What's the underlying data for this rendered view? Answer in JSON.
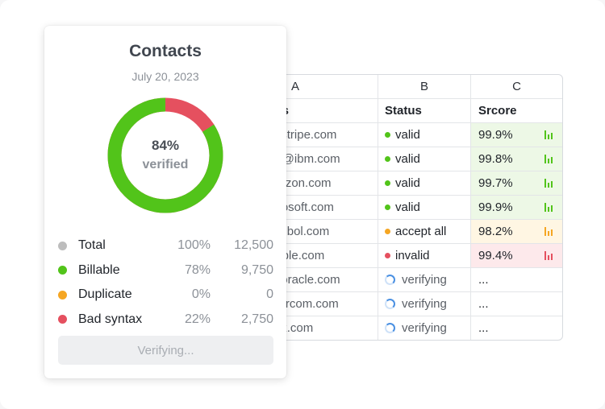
{
  "card": {
    "title": "Contacts",
    "date": "July 20, 2023",
    "donut": {
      "percent_label": "84%",
      "sub_label": "verified",
      "verified_fraction": 0.84
    },
    "legend": [
      {
        "name": "Total",
        "percent": "100%",
        "count": "12,500",
        "color": "#bdbdbd"
      },
      {
        "name": "Billable",
        "percent": "78%",
        "count": "9,750",
        "color": "#52c41a"
      },
      {
        "name": "Duplicate",
        "percent": "0%",
        "count": "0",
        "color": "#f5a623"
      },
      {
        "name": "Bad syntax",
        "percent": "22%",
        "count": "2,750",
        "color": "#e5505f"
      }
    ],
    "button_label": "Verifying..."
  },
  "sheet": {
    "columns": [
      "A",
      "B",
      "C"
    ],
    "headers": [
      "ess",
      "Status",
      "Srcore"
    ],
    "rows": [
      {
        "email": "@stripe.com",
        "status": "valid",
        "kind": "valid",
        "score": "99.9%"
      },
      {
        "email": "be@ibm.com",
        "status": "valid",
        "kind": "valid",
        "score": "99.8%"
      },
      {
        "email": "mazon.com",
        "status": "valid",
        "kind": "valid",
        "score": "99.7%"
      },
      {
        "email": "icrosoft.com",
        "status": "valid",
        "kind": "valid",
        "score": "99.9%"
      },
      {
        "email": "z@bol.com",
        "status": "accept all",
        "kind": "accept",
        "score": "98.2%"
      },
      {
        "email": "apple.com",
        "status": "invalid",
        "kind": "invalid",
        "score": "99.4%"
      },
      {
        "email": "@oracle.com",
        "status": "verifying",
        "kind": "verifying",
        "score": "..."
      },
      {
        "email": "ntercom.com",
        "status": "verifying",
        "kind": "verifying",
        "score": "..."
      },
      {
        "email": "@x.com",
        "status": "verifying",
        "kind": "verifying",
        "score": "..."
      }
    ]
  },
  "colors": {
    "valid": "#52c41a",
    "accept": "#f5a623",
    "invalid": "#e5505f",
    "valid_bg": "#edf8e6",
    "accept_bg": "#fff6e3",
    "invalid_bg": "#fde9eb"
  }
}
